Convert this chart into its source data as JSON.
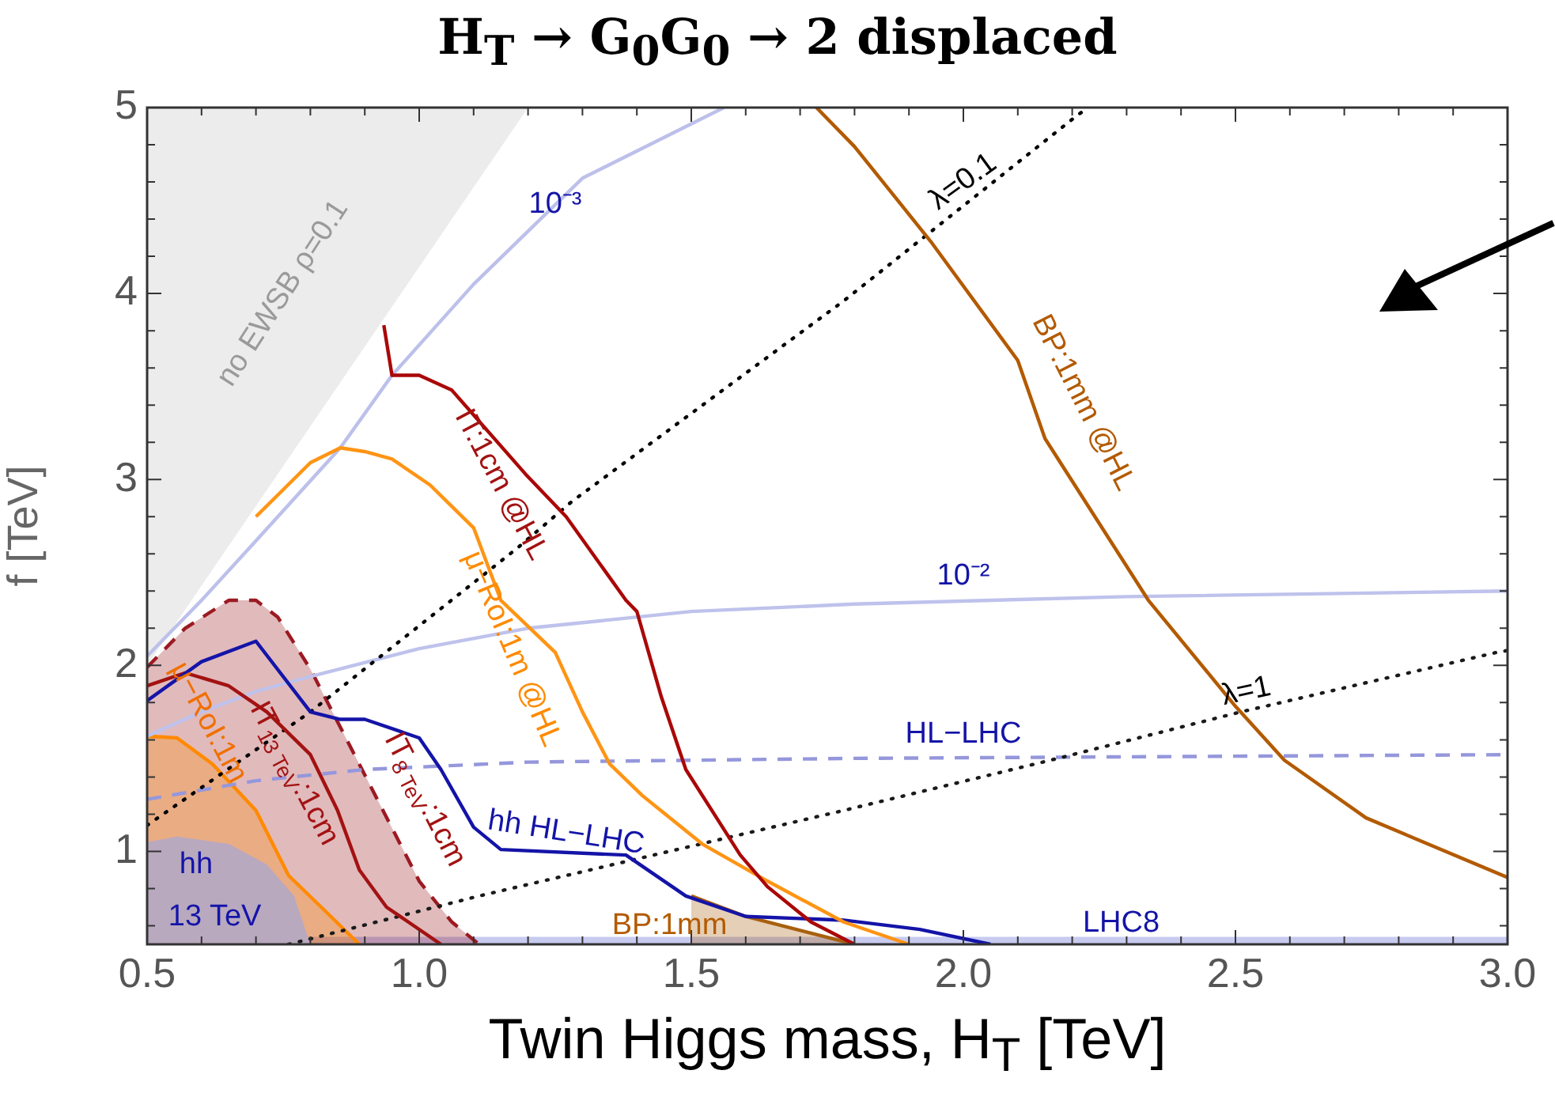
{
  "chart_data": {
    "type": "line",
    "title": "H$_{T}$ → G$_{0}$G$_{0}$ → 2 displaced",
    "xlabel": "Twin Higgs mass, H$_{T}$ [TeV]",
    "ylabel": "f [TeV]",
    "marker": "none",
    "grid": false,
    "xlim": [
      0.5,
      3.0
    ],
    "ylim": [
      0.5,
      5
    ],
    "xticks": [
      0.5,
      {
        "value": 0.6,
        "label": null
      },
      {
        "value": 0.7,
        "label": null
      },
      {
        "value": 0.8,
        "label": null
      },
      {
        "value": 0.9,
        "label": null
      },
      {
        "value": 1,
        "label": "1.0"
      },
      {
        "value": 1.1,
        "label": null
      },
      {
        "value": 1.2,
        "label": null
      },
      {
        "value": 1.3,
        "label": null
      },
      {
        "value": 1.4,
        "label": null
      },
      1.5,
      {
        "value": 1.6,
        "label": null
      },
      {
        "value": 1.7,
        "label": null
      },
      {
        "value": 1.8,
        "label": null
      },
      {
        "value": 1.9,
        "label": null
      },
      {
        "value": 2,
        "label": "2.0"
      },
      {
        "value": 2.1,
        "label": null
      },
      {
        "value": 2.2,
        "label": null
      },
      {
        "value": 2.3,
        "label": null
      },
      {
        "value": 2.4,
        "label": null
      },
      2.5,
      {
        "value": 2.6,
        "label": null
      },
      {
        "value": 2.7,
        "label": null
      },
      {
        "value": 2.8,
        "label": null
      },
      {
        "value": 2.9,
        "label": null
      },
      {
        "value": 3,
        "label": "3.0"
      }
    ],
    "yticks": [
      {
        "value": 0.6,
        "label": null
      },
      {
        "value": 0.8,
        "label": null
      },
      1,
      {
        "value": 1.2,
        "label": null
      },
      {
        "value": 1.4,
        "label": null
      },
      {
        "value": 1.6,
        "label": null
      },
      {
        "value": 1.8,
        "label": null
      },
      2,
      {
        "value": 2.2,
        "label": null
      },
      {
        "value": 2.4,
        "label": null
      },
      {
        "value": 2.6,
        "label": null
      },
      {
        "value": 2.8,
        "label": null
      },
      3,
      {
        "value": 3.2,
        "label": null
      },
      {
        "value": 3.4,
        "label": null
      },
      {
        "value": 3.6,
        "label": null
      },
      {
        "value": 3.8,
        "label": null
      },
      4,
      {
        "value": 4.2,
        "label": null
      },
      {
        "value": 4.4,
        "label": null
      },
      {
        "value": 4.6,
        "label": null
      },
      {
        "value": 4.8,
        "label": null
      },
      5
    ],
    "series": [
      {
        "type": "area",
        "color": "#ececec",
        "x": [
          0.5,
          1.2,
          0.5
        ],
        "values": [
          2.0,
          5.0,
          5.0
        ]
      },
      {
        "type": "area",
        "color": "#c8cbf0",
        "x": [
          0.5,
          3.0
        ],
        "values": [
          0.54,
          0.54
        ]
      },
      {
        "type": "area",
        "color": "#9c1a22",
        "line_style": "dashed",
        "x": [
          0.5,
          0.57,
          0.65,
          0.7,
          0.74,
          0.8,
          0.86,
          0.93,
          1.0,
          1.06,
          1.11
        ],
        "values": [
          1.99,
          2.2,
          2.35,
          2.35,
          2.26,
          1.98,
          1.64,
          1.24,
          0.84,
          0.62,
          0.5
        ]
      },
      {
        "type": "area",
        "color": "#ff8a00",
        "line_style": "solid",
        "x": [
          0.5,
          0.555,
          0.62,
          0.7,
          0.76,
          0.82,
          0.89
        ],
        "values": [
          1.62,
          1.61,
          1.47,
          1.22,
          0.87,
          0.7,
          0.5
        ]
      },
      {
        "type": "area",
        "color": "#b9a9bf",
        "x": [
          0.5,
          0.555,
          0.65,
          0.72,
          0.77,
          0.8
        ],
        "values": [
          1.05,
          1.08,
          1.04,
          0.93,
          0.76,
          0.5
        ]
      },
      {
        "type": "area",
        "color": "#a8600e",
        "line_style": "solid",
        "x": [
          1.5,
          1.6,
          1.8
        ],
        "values": [
          0.76,
          0.65,
          0.5
        ]
      },
      {
        "color": "#bcc0ea",
        "x": [
          0.5,
          0.6,
          0.7,
          0.855,
          0.95,
          1.1,
          1.3,
          1.56
        ],
        "values": [
          2.05,
          2.35,
          2.67,
          3.17,
          3.56,
          4.05,
          4.62,
          5.0
        ]
      },
      {
        "color": "#bec2ec",
        "x": [
          0.5,
          0.6,
          0.7,
          0.8,
          1.0,
          1.2,
          1.5,
          1.8,
          2.3,
          3.0
        ],
        "values": [
          1.62,
          1.75,
          1.86,
          1.94,
          2.09,
          2.2,
          2.29,
          2.33,
          2.37,
          2.4
        ]
      },
      {
        "color": "#9597dc",
        "line_style": "dashed",
        "x": [
          0.5,
          0.7,
          0.9,
          1.2,
          1.8,
          3.0
        ],
        "values": [
          1.28,
          1.38,
          1.44,
          1.48,
          1.5,
          1.52
        ]
      },
      {
        "color": "#000000",
        "line_style": "dotted",
        "x": [
          0.5,
          0.8,
          1.18,
          1.28,
          1.78,
          2.21,
          2.23
        ],
        "values": [
          1.14,
          1.75,
          2.63,
          2.88,
          3.96,
          4.96,
          5.0
        ]
      },
      {
        "color": "#1a1a1a",
        "line_style": "dotted",
        "x": [
          0.76,
          1.11,
          1.78,
          2.16,
          2.51,
          2.98,
          3.0
        ],
        "values": [
          0.5,
          0.76,
          1.22,
          1.49,
          1.75,
          2.07,
          2.08
        ]
      },
      {
        "color": "#a31212",
        "x": [
          0.5,
          0.57,
          0.65,
          0.72,
          0.8,
          0.85,
          0.89,
          0.94,
          1.04
        ],
        "values": [
          1.89,
          1.96,
          1.89,
          1.75,
          1.52,
          1.22,
          0.9,
          0.7,
          0.5
        ]
      },
      {
        "color": "#1414a8",
        "x": [
          0.5,
          0.6,
          0.7,
          0.8,
          0.855,
          0.9,
          1.0,
          1.04,
          1.1,
          1.15,
          1.38,
          1.49,
          1.6,
          1.78,
          1.92,
          2.05
        ],
        "values": [
          1.81,
          2.02,
          2.13,
          1.75,
          1.71,
          1.71,
          1.61,
          1.44,
          1.13,
          1.01,
          0.98,
          0.76,
          0.65,
          0.63,
          0.58,
          0.5
        ]
      },
      {
        "color": "#ff9414",
        "x": [
          0.7,
          0.8,
          0.855,
          0.9,
          0.95,
          1.02,
          1.1,
          1.15,
          1.25,
          1.3,
          1.35,
          1.41,
          1.52,
          1.64,
          1.78,
          1.9
        ],
        "values": [
          2.8,
          3.09,
          3.17,
          3.15,
          3.11,
          2.97,
          2.74,
          2.35,
          2.07,
          1.75,
          1.47,
          1.3,
          1.04,
          0.84,
          0.62,
          0.5
        ]
      },
      {
        "color": "#aa0808",
        "x": [
          0.935,
          0.95,
          1.0,
          1.06,
          1.195,
          1.27,
          1.38,
          1.4,
          1.445,
          1.49,
          1.59,
          1.64,
          1.72,
          1.8
        ],
        "values": [
          3.83,
          3.56,
          3.56,
          3.48,
          3.03,
          2.8,
          2.35,
          2.29,
          1.83,
          1.44,
          0.98,
          0.81,
          0.62,
          0.5
        ]
      },
      {
        "color": "#b35a00",
        "x": [
          1.73,
          1.8,
          1.94,
          2.1,
          2.15,
          2.34,
          2.5,
          2.59,
          2.74,
          3.0
        ],
        "values": [
          5.0,
          4.79,
          4.28,
          3.64,
          3.22,
          2.35,
          1.78,
          1.49,
          1.18,
          0.86
        ]
      }
    ],
    "annotations": [
      "no EWSB ρ=0.1",
      "10⁻³",
      "10⁻²",
      "λ=0.1",
      "λ=1",
      "IT:1cm @HL",
      "μ−RoI:1m @HL",
      "BP:1mm @HL",
      "IT$_{13 TeV}$:1cm",
      "IT$_{8 TeV}$:1cm",
      "μ−RoI:1m",
      "hh HL−LHC",
      "HL−LHC",
      "LHC8",
      "BP:1mm",
      "hh",
      "13 TeV"
    ]
  }
}
